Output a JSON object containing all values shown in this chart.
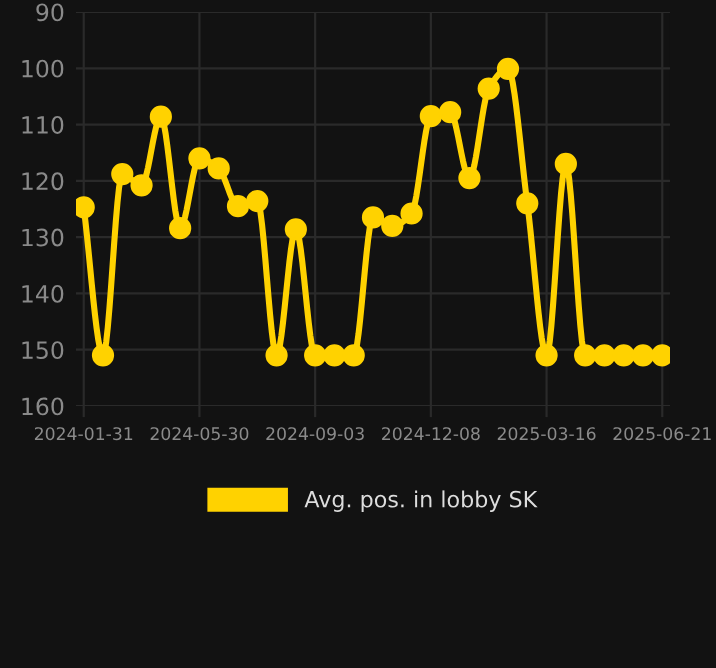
{
  "chart_data": {
    "type": "line",
    "categories": [
      "2024-01-31",
      null,
      null,
      null,
      null,
      null,
      "2024-05-30",
      null,
      null,
      null,
      null,
      null,
      "2024-09-03",
      null,
      null,
      null,
      null,
      null,
      "2024-12-08",
      null,
      null,
      null,
      null,
      null,
      "2025-03-16",
      null,
      null,
      null,
      null,
      null,
      "2025-06-21"
    ],
    "series": [
      {
        "name": "Avg. pos. in lobby SK",
        "color": "#ffd200",
        "values": [
          124.7,
          151,
          118.8,
          120.8,
          108.6,
          128.4,
          116,
          117.8,
          124.5,
          123.6,
          151,
          128.6,
          151,
          151,
          151,
          126.5,
          128,
          125.8,
          108.5,
          107.8,
          119.5,
          103.6,
          100.1,
          124,
          151,
          117,
          151,
          151,
          151,
          151,
          151
        ]
      }
    ],
    "ylim": [
      160,
      90
    ],
    "yticks": [
      90,
      100,
      110,
      120,
      130,
      140,
      150,
      160
    ],
    "grid": true,
    "legend": "bottom",
    "marker": "circle",
    "line_style": "solid"
  }
}
